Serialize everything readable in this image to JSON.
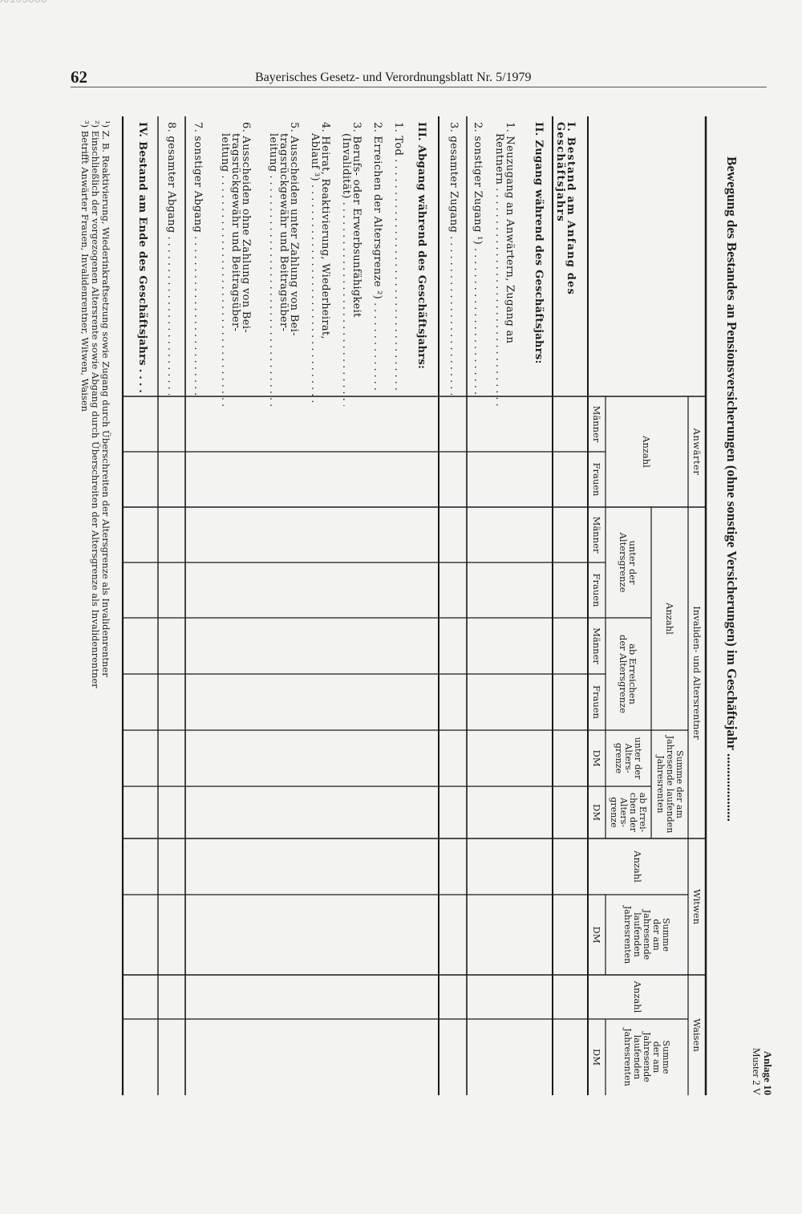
{
  "scan_id": "00105088",
  "page_number": "62",
  "running_head": "Bayerisches Gesetz- und Verordnungsblatt Nr. 5/1979",
  "annex": {
    "label": "Anlage 10",
    "form": "Muster 2 V"
  },
  "title": "Bewegung des Bestandes an Pensionsversicherungen (ohne sonstige Versicherungen) im Geschäftsjahr ....................",
  "header": {
    "anwaerter": "Anwärter",
    "anwaerter_anzahl": "Anzahl",
    "invaliden": "Invaliden- und Altersrentner",
    "invaliden_anzahl": "Anzahl",
    "unter_altersgrenze": "unter der\nAltersgrenze",
    "ab_altersgrenze": "ab Erreichen\nder Altersgrenze",
    "summe_invaliden": "Summe der am\nJahresende laufenden\nJahresrenten",
    "summe_unter": "unter der\nAlters-\ngrenze",
    "summe_ab": "ab Errei-\nchen der\nAlters-\ngrenze",
    "witwen": "Witwen",
    "witwen_anzahl": "Anzahl",
    "witwen_summe": "Summe\nder am\nJahresende\nlaufenden\nJahresrenten",
    "waisen": "Waisen",
    "waisen_anzahl": "Anzahl",
    "waisen_summe": "Summe\nder am\nJahresende\nlaufenden\nJahresrenten",
    "maenner": "Männer",
    "frauen": "Frauen",
    "dm": "DM"
  },
  "rows": {
    "s1": "I. Bestand am Anfang des Geschäftsjahrs",
    "s2": "II. Zugang während des Geschäftsjahrs:",
    "s2_1a": "1. Neuzugang an Anwärtern, Zugang an",
    "s2_1b": "Rentnern",
    "s2_2": "2. sonstiger Zugang ¹)",
    "s2_3": "3. gesamter Zugang",
    "s3": "III. Abgang während des Geschäftsjahrs:",
    "s3_1": "1. Tod",
    "s3_2": "2. Erreichen der Altersgrenze ²)",
    "s3_3a": "3. Berufs- oder Erwerbsunfähigkeit",
    "s3_3b": "(Invalidität)",
    "s3_4a": "4. Heirat, Reaktivierung, Wiederheirat,",
    "s3_4b": "Ablauf ³)",
    "s3_5a": "5. Ausscheiden unter Zahlung von Bei-",
    "s3_5b": "tragsrückgewähr und Beitragsüber-",
    "s3_5c": "leitung",
    "s3_6a": "6. Ausscheiden ohne Zahlung von Bei-",
    "s3_6b": "tragsrückgewähr und Beitragsüber-",
    "s3_6c": "leitung",
    "s3_7": "7. sonstiger Abgang",
    "s3_8": "8. gesamter Abgang",
    "s4": "IV. Bestand am Ende des Geschäftsjahrs",
    "leader": "......................................"
  },
  "footnotes": [
    "¹) Z. B. Reaktivierung, Wiederinkraftsetzung sowie Zugang durch Überschreiten der Altersgrenze als Invalidenrentner",
    "²) Einschließlich der vorgezogenen Altersrente sowie Abgang durch Überschreiten der Altersgrenze als Invalidenrentner",
    "³) Betrifft Anwärter Frauen, Invalidenrentner, Witwen, Waisen"
  ]
}
